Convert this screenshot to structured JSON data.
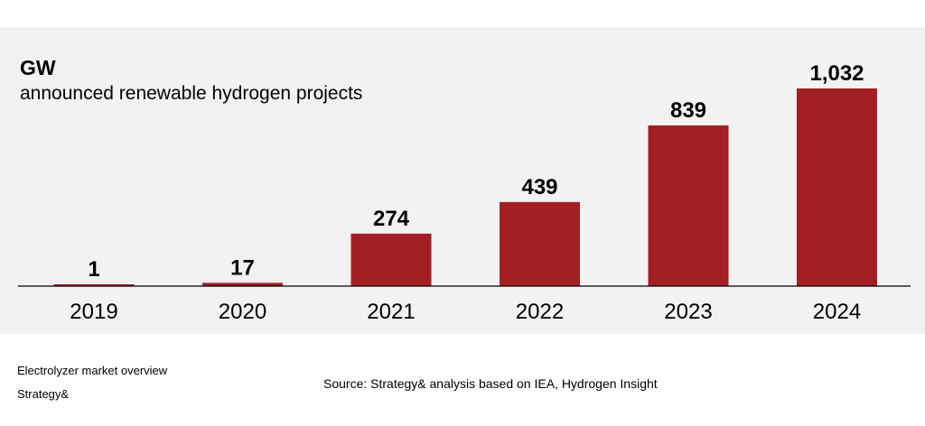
{
  "chart_data": {
    "type": "bar",
    "title": "GW",
    "subtitle": "announced renewable hydrogen projects",
    "categories": [
      "2019",
      "2020",
      "2021",
      "2022",
      "2023",
      "2024"
    ],
    "values": [
      1,
      17,
      274,
      439,
      839,
      1032
    ],
    "data_labels": [
      "1",
      "17",
      "274",
      "439",
      "839",
      "1,032"
    ],
    "ylim": [
      0,
      1200
    ],
    "grid": false,
    "bar_color": "#a31f23"
  },
  "footer": {
    "report_title": "Electrolyzer market overview",
    "publisher": "Strategy&",
    "source": "Source: Strategy& analysis based on IEA, Hydrogen Insight"
  }
}
